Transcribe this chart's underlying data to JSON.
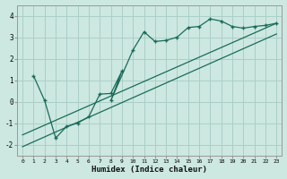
{
  "xlabel": "Humidex (Indice chaleur)",
  "bg_color": "#cce8e0",
  "grid_color": "#aacfc8",
  "line_color": "#1a6b5a",
  "xlim": [
    -0.5,
    23.5
  ],
  "ylim": [
    -2.5,
    4.5
  ],
  "xticks": [
    0,
    1,
    2,
    3,
    4,
    5,
    6,
    7,
    8,
    9,
    10,
    11,
    12,
    13,
    14,
    15,
    16,
    17,
    18,
    19,
    20,
    21,
    22,
    23
  ],
  "yticks": [
    -2,
    -1,
    0,
    1,
    2,
    3,
    4
  ],
  "scatter_x": [
    1,
    2,
    3,
    4,
    5,
    6,
    7,
    8,
    9,
    8,
    10,
    11,
    12,
    13,
    14,
    15,
    16,
    17,
    18,
    19,
    20,
    21,
    22,
    23
  ],
  "scatter_y": [
    1.2,
    0.05,
    -1.7,
    -1.15,
    -1.0,
    -0.7,
    0.35,
    0.38,
    1.42,
    0.05,
    2.4,
    3.25,
    2.8,
    2.85,
    3.0,
    3.45,
    3.5,
    3.85,
    3.75,
    3.5,
    3.42,
    3.5,
    3.55,
    3.65
  ],
  "line1_x": [
    0,
    23
  ],
  "line1_y": [
    -1.55,
    3.65
  ],
  "line2_x": [
    0,
    23
  ],
  "line2_y": [
    -2.1,
    3.15
  ]
}
